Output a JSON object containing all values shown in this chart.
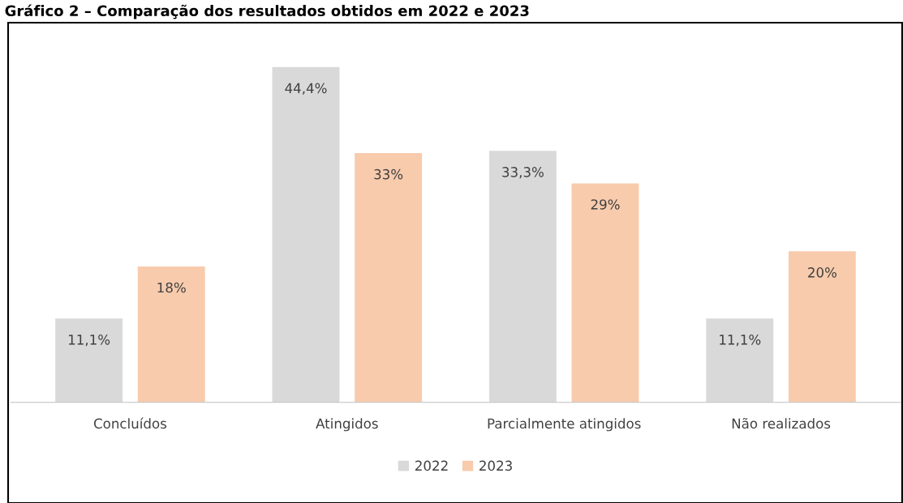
{
  "chart_data": {
    "type": "bar",
    "title": "Gráfico 2 – Comparação dos resultados obtidos em 2022 e 2023",
    "categories": [
      "Concluídos",
      "Atingidos",
      "Parcialmente atingidos",
      "Não realizados"
    ],
    "series": [
      {
        "name": "2022",
        "color": "#d9d9d9",
        "values": [
          11.1,
          44.4,
          33.3,
          11.1
        ],
        "value_labels": [
          "11,1%",
          "44,4%",
          "33,3%",
          "11,1%"
        ]
      },
      {
        "name": "2023",
        "color": "#f8cbad",
        "values": [
          18,
          33,
          29,
          20
        ],
        "value_labels": [
          "18%",
          "33%",
          "29%",
          "20%"
        ]
      }
    ],
    "legend": "bottom"
  }
}
